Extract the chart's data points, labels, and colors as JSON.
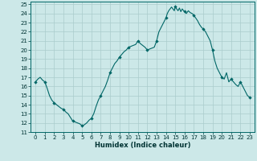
{
  "title": "",
  "xlabel": "Humidex (Indice chaleur)",
  "background_color": "#cce8e8",
  "grid_color": "#aacccc",
  "line_color": "#006666",
  "marker_color": "#006666",
  "xlim": [
    -0.5,
    23.5
  ],
  "ylim": [
    11,
    25.3
  ],
  "yticks": [
    11,
    12,
    13,
    14,
    15,
    16,
    17,
    18,
    19,
    20,
    21,
    22,
    23,
    24,
    25
  ],
  "xticks": [
    0,
    1,
    2,
    3,
    4,
    5,
    6,
    7,
    8,
    9,
    10,
    11,
    12,
    13,
    14,
    15,
    16,
    17,
    18,
    19,
    20,
    21,
    22,
    23
  ],
  "x_vals": [
    0,
    0.25,
    0.5,
    0.75,
    1,
    1.25,
    1.5,
    1.75,
    2,
    2.25,
    2.5,
    2.75,
    3,
    3.25,
    3.5,
    3.75,
    4,
    4.25,
    4.5,
    4.75,
    5,
    5.25,
    5.5,
    5.75,
    6,
    6.25,
    6.5,
    6.75,
    7,
    7.25,
    7.5,
    7.75,
    8,
    8.25,
    8.5,
    8.75,
    9,
    9.25,
    9.5,
    9.75,
    10,
    10.25,
    10.5,
    10.75,
    11,
    11.25,
    11.5,
    11.75,
    12,
    12.25,
    12.5,
    12.75,
    13,
    13.25,
    13.5,
    13.75,
    14,
    14.15,
    14.3,
    14.45,
    14.6,
    14.75,
    14.9,
    15,
    15.15,
    15.3,
    15.45,
    15.6,
    15.75,
    15.9,
    16,
    16.2,
    16.4,
    16.6,
    16.8,
    17,
    17.2,
    17.4,
    17.6,
    17.8,
    18,
    18.25,
    18.5,
    18.75,
    19,
    19.25,
    19.5,
    19.75,
    20,
    20.25,
    20.5,
    20.75,
    21,
    21.25,
    21.5,
    21.75,
    22,
    22.25,
    22.5,
    22.75,
    23
  ],
  "y_vals": [
    16.5,
    16.8,
    17.0,
    16.7,
    16.5,
    15.8,
    15.0,
    14.5,
    14.2,
    14.0,
    13.8,
    13.6,
    13.5,
    13.2,
    13.0,
    12.6,
    12.2,
    12.1,
    12.0,
    11.9,
    11.7,
    11.8,
    12.0,
    12.3,
    12.5,
    13.0,
    13.8,
    14.5,
    15.0,
    15.5,
    16.0,
    16.7,
    17.5,
    18.0,
    18.5,
    18.8,
    19.2,
    19.5,
    19.8,
    20.0,
    20.3,
    20.4,
    20.5,
    20.6,
    21.0,
    20.7,
    20.5,
    20.3,
    20.0,
    20.1,
    20.2,
    20.3,
    21.0,
    22.0,
    22.5,
    23.0,
    23.5,
    24.0,
    24.3,
    24.5,
    24.7,
    24.5,
    24.3,
    24.8,
    24.5,
    24.3,
    24.6,
    24.2,
    24.5,
    24.3,
    24.2,
    24.0,
    24.3,
    24.1,
    24.0,
    23.8,
    23.5,
    23.2,
    22.8,
    22.5,
    22.3,
    22.0,
    21.5,
    21.0,
    20.0,
    18.8,
    18.0,
    17.5,
    17.0,
    16.8,
    17.5,
    16.5,
    16.8,
    16.5,
    16.2,
    16.0,
    16.5,
    16.0,
    15.5,
    15.0,
    14.8
  ],
  "marker_x": [
    0,
    1,
    2,
    3,
    4,
    5,
    6,
    7,
    8,
    9,
    10,
    11,
    12,
    13,
    14,
    15,
    16,
    17,
    18,
    19,
    20,
    21,
    22,
    23
  ],
  "marker_y": [
    16.5,
    16.5,
    14.2,
    13.5,
    12.2,
    11.7,
    12.5,
    15.0,
    17.5,
    19.2,
    20.3,
    21.0,
    20.0,
    21.0,
    23.5,
    24.8,
    24.2,
    23.8,
    22.3,
    20.0,
    17.0,
    16.8,
    16.5,
    14.8
  ]
}
